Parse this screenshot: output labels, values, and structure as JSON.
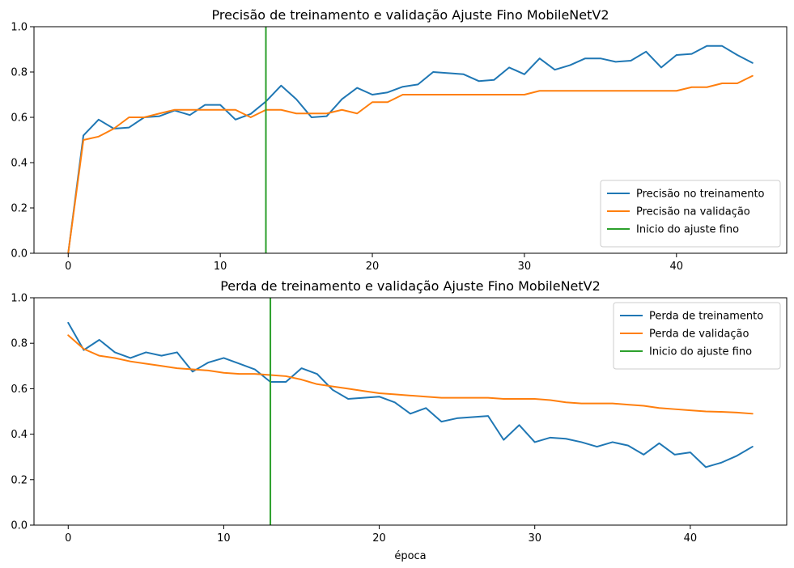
{
  "chart_data": [
    {
      "type": "line",
      "title": "Precisão de treinamento e validação Ajuste Fino MobileNetV2",
      "xlabel": "",
      "ylabel": "",
      "xlim": [
        -2.25,
        47.25
      ],
      "ylim": [
        0,
        1
      ],
      "xticks": [
        0,
        10,
        20,
        30,
        40
      ],
      "yticks": [
        0.0,
        0.2,
        0.4,
        0.6,
        0.8,
        1.0
      ],
      "xtick_labels": [
        "0",
        "10",
        "20",
        "30",
        "40"
      ],
      "ytick_labels": [
        "0.0",
        "0.2",
        "0.4",
        "0.6",
        "0.8",
        "1.0"
      ],
      "legend_position": "lower-right",
      "series": [
        {
          "name": "Precisão no treinamento",
          "color": "#1f77b4",
          "x": [
            0,
            1,
            2,
            3,
            4,
            5,
            6,
            7,
            8,
            9,
            10,
            11,
            12,
            13,
            14,
            15,
            16,
            17,
            18,
            19,
            20,
            21,
            22,
            23,
            24,
            25,
            26,
            27,
            28,
            29,
            30,
            31,
            32,
            33,
            34,
            35,
            36,
            37,
            38,
            39,
            40,
            41,
            42,
            43,
            44,
            45
          ],
          "values": [
            0.0,
            0.52,
            0.59,
            0.55,
            0.555,
            0.6,
            0.605,
            0.63,
            0.61,
            0.655,
            0.655,
            0.59,
            0.615,
            0.67,
            0.74,
            0.68,
            0.6,
            0.605,
            0.68,
            0.73,
            0.7,
            0.71,
            0.735,
            0.745,
            0.8,
            0.795,
            0.79,
            0.76,
            0.765,
            0.82,
            0.79,
            0.86,
            0.81,
            0.83,
            0.86,
            0.86,
            0.845,
            0.85,
            0.89,
            0.82,
            0.875,
            0.88,
            0.915,
            0.915,
            0.875,
            0.84
          ]
        },
        {
          "name": "Precisão na validação",
          "color": "#ff7f0e",
          "x": [
            0,
            1,
            2,
            3,
            4,
            5,
            6,
            7,
            8,
            9,
            10,
            11,
            12,
            13,
            14,
            15,
            16,
            17,
            18,
            19,
            20,
            21,
            22,
            23,
            24,
            25,
            26,
            27,
            28,
            29,
            30,
            31,
            32,
            33,
            34,
            35,
            36,
            37,
            38,
            39,
            40,
            41,
            42,
            43,
            44,
            45
          ],
          "values": [
            0.0,
            0.5,
            0.515,
            0.55,
            0.6,
            0.6,
            0.617,
            0.633,
            0.633,
            0.633,
            0.633,
            0.633,
            0.6,
            0.633,
            0.633,
            0.617,
            0.617,
            0.617,
            0.633,
            0.617,
            0.667,
            0.667,
            0.7,
            0.7,
            0.7,
            0.7,
            0.7,
            0.7,
            0.7,
            0.7,
            0.7,
            0.717,
            0.717,
            0.717,
            0.717,
            0.717,
            0.717,
            0.717,
            0.717,
            0.717,
            0.717,
            0.733,
            0.733,
            0.75,
            0.75,
            0.783
          ]
        }
      ],
      "vline": {
        "name": "Inicio do ajuste fino",
        "x": 13,
        "color": "#2ca02c"
      }
    },
    {
      "type": "line",
      "title": "Perda de treinamento e validação Ajuste Fino MobileNetV2",
      "xlabel": "época",
      "ylabel": "",
      "xlim": [
        -2.2,
        46.2
      ],
      "ylim": [
        0,
        1
      ],
      "xticks": [
        0,
        10,
        20,
        30,
        40
      ],
      "yticks": [
        0.0,
        0.2,
        0.4,
        0.6,
        0.8,
        1.0
      ],
      "xtick_labels": [
        "0",
        "10",
        "20",
        "30",
        "40"
      ],
      "ytick_labels": [
        "0.0",
        "0.2",
        "0.4",
        "0.6",
        "0.8",
        "1.0"
      ],
      "legend_position": "upper-right",
      "series": [
        {
          "name": "Perda de treinamento",
          "color": "#1f77b4",
          "x": [
            0,
            1,
            2,
            3,
            4,
            5,
            6,
            7,
            8,
            9,
            10,
            11,
            12,
            13,
            14,
            15,
            16,
            17,
            18,
            19,
            20,
            21,
            22,
            23,
            24,
            25,
            26,
            27,
            28,
            29,
            30,
            31,
            32,
            33,
            34,
            35,
            36,
            37,
            38,
            39,
            40,
            41,
            42,
            43,
            44
          ],
          "values": [
            0.89,
            0.77,
            0.815,
            0.76,
            0.735,
            0.76,
            0.745,
            0.76,
            0.675,
            0.715,
            0.735,
            0.71,
            0.685,
            0.63,
            0.63,
            0.69,
            0.665,
            0.595,
            0.555,
            0.56,
            0.565,
            0.54,
            0.49,
            0.515,
            0.455,
            0.47,
            0.475,
            0.48,
            0.375,
            0.44,
            0.365,
            0.385,
            0.38,
            0.365,
            0.345,
            0.365,
            0.35,
            0.31,
            0.36,
            0.31,
            0.32,
            0.255,
            0.275,
            0.305,
            0.345
          ]
        },
        {
          "name": "Perda de validação",
          "color": "#ff7f0e",
          "x": [
            0,
            1,
            2,
            3,
            4,
            5,
            6,
            7,
            8,
            9,
            10,
            11,
            12,
            13,
            14,
            15,
            16,
            17,
            18,
            19,
            20,
            21,
            22,
            23,
            24,
            25,
            26,
            27,
            28,
            29,
            30,
            31,
            32,
            33,
            34,
            35,
            36,
            37,
            38,
            39,
            40,
            41,
            42,
            43,
            44
          ],
          "values": [
            0.835,
            0.775,
            0.745,
            0.735,
            0.72,
            0.71,
            0.7,
            0.69,
            0.685,
            0.68,
            0.67,
            0.665,
            0.665,
            0.66,
            0.655,
            0.64,
            0.62,
            0.61,
            0.6,
            0.59,
            0.58,
            0.575,
            0.57,
            0.565,
            0.56,
            0.56,
            0.56,
            0.56,
            0.555,
            0.555,
            0.555,
            0.55,
            0.54,
            0.535,
            0.535,
            0.535,
            0.53,
            0.525,
            0.515,
            0.51,
            0.505,
            0.5,
            0.498,
            0.495,
            0.49
          ]
        }
      ],
      "vline": {
        "name": "Inicio do ajuste fino",
        "x": 13,
        "color": "#2ca02c"
      }
    }
  ]
}
